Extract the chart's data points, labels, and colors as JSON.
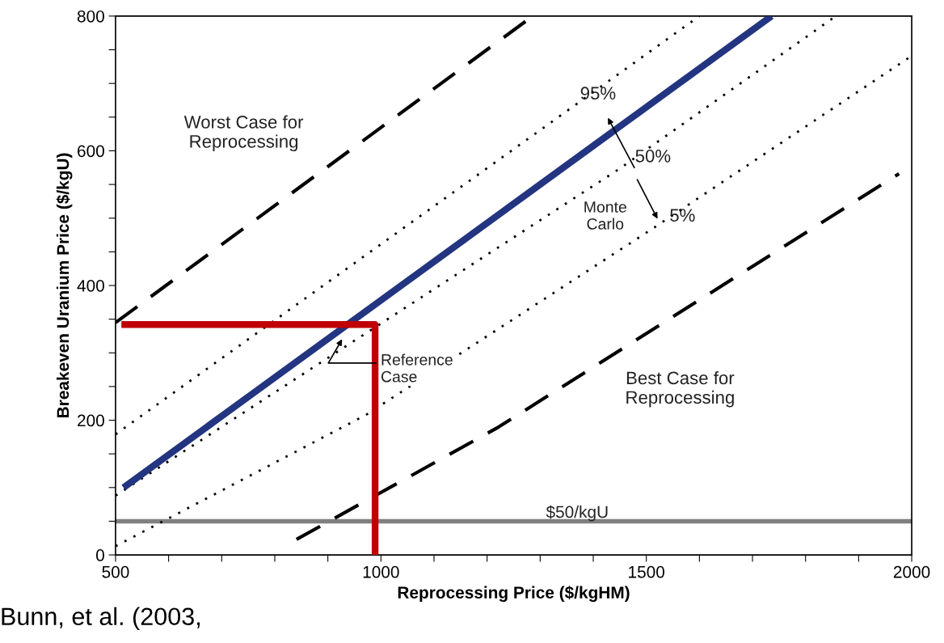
{
  "chart_data": {
    "type": "line",
    "xlabel": "Reprocessing Price ($/kgHM)",
    "ylabel": "Breakeven Uranium Price ($/kgU)",
    "xlim": [
      500,
      2000
    ],
    "ylim": [
      0,
      800
    ],
    "xticks": [
      500,
      {
        "value": 600,
        "label": null
      },
      {
        "value": 700,
        "label": null
      },
      {
        "value": 800,
        "label": null
      },
      {
        "value": 900,
        "label": null
      },
      1000,
      {
        "value": 1100,
        "label": null
      },
      {
        "value": 1200,
        "label": null
      },
      {
        "value": 1300,
        "label": null
      },
      {
        "value": 1400,
        "label": null
      },
      1500,
      {
        "value": 1600,
        "label": null
      },
      {
        "value": 1700,
        "label": null
      },
      {
        "value": 1800,
        "label": null
      },
      {
        "value": 1900,
        "label": null
      },
      2000
    ],
    "yticks": [
      0,
      {
        "value": 50,
        "label": null
      },
      {
        "value": 100,
        "label": null
      },
      {
        "value": 150,
        "label": null
      },
      200,
      {
        "value": 250,
        "label": null
      },
      {
        "value": 300,
        "label": null
      },
      {
        "value": 350,
        "label": null
      },
      400,
      {
        "value": 450,
        "label": null
      },
      {
        "value": 500,
        "label": null
      },
      {
        "value": 550,
        "label": null
      },
      600,
      {
        "value": 650,
        "label": null
      },
      {
        "value": 700,
        "label": null
      },
      {
        "value": 750,
        "label": null
      },
      800
    ],
    "grid": false,
    "series": [
      {
        "color": "#000000",
        "line_style": "dashed",
        "x": [
          500,
          1286
        ],
        "values": [
          345,
          800
        ]
      },
      {
        "color": "#000000",
        "line_style": "dotted",
        "x": [
          500,
          1600
        ],
        "values": [
          179,
          800
        ]
      },
      {
        "color": "#000000",
        "line_style": "dotted",
        "x": [
          500,
          1447,
          1857
        ],
        "values": [
          88,
          572,
          800
        ]
      },
      {
        "color": "#000000",
        "line_style": "dotted",
        "x": [
          500,
          972,
          1511,
          2000
        ],
        "values": [
          13,
          208,
          484,
          741
        ]
      },
      {
        "color": "#000000",
        "line_style": "dashed",
        "x": [
          841,
          1222,
          1976
        ],
        "values": [
          23,
          190,
          566
        ]
      },
      {
        "color": "#233580",
        "line_style": "solid",
        "x": [
          515,
          1736
        ],
        "values": [
          100,
          800
        ]
      },
      {
        "color": "#c00000",
        "line_style": "solid",
        "x": [
          511,
          989,
          989
        ],
        "values": [
          342,
          342,
          0
        ]
      }
    ],
    "ref_lines": [
      {
        "axis": "y",
        "value": 50,
        "label": "$50/kgU",
        "color": "#808080"
      }
    ],
    "annotations": [
      "Worst Case for\nReprocessing",
      "Best Case for\nReprocessing",
      "95%",
      "50%",
      "Monte\nCarlo",
      "5%",
      "Reference\nCase",
      "Bunn, et al. (2003,"
    ]
  }
}
